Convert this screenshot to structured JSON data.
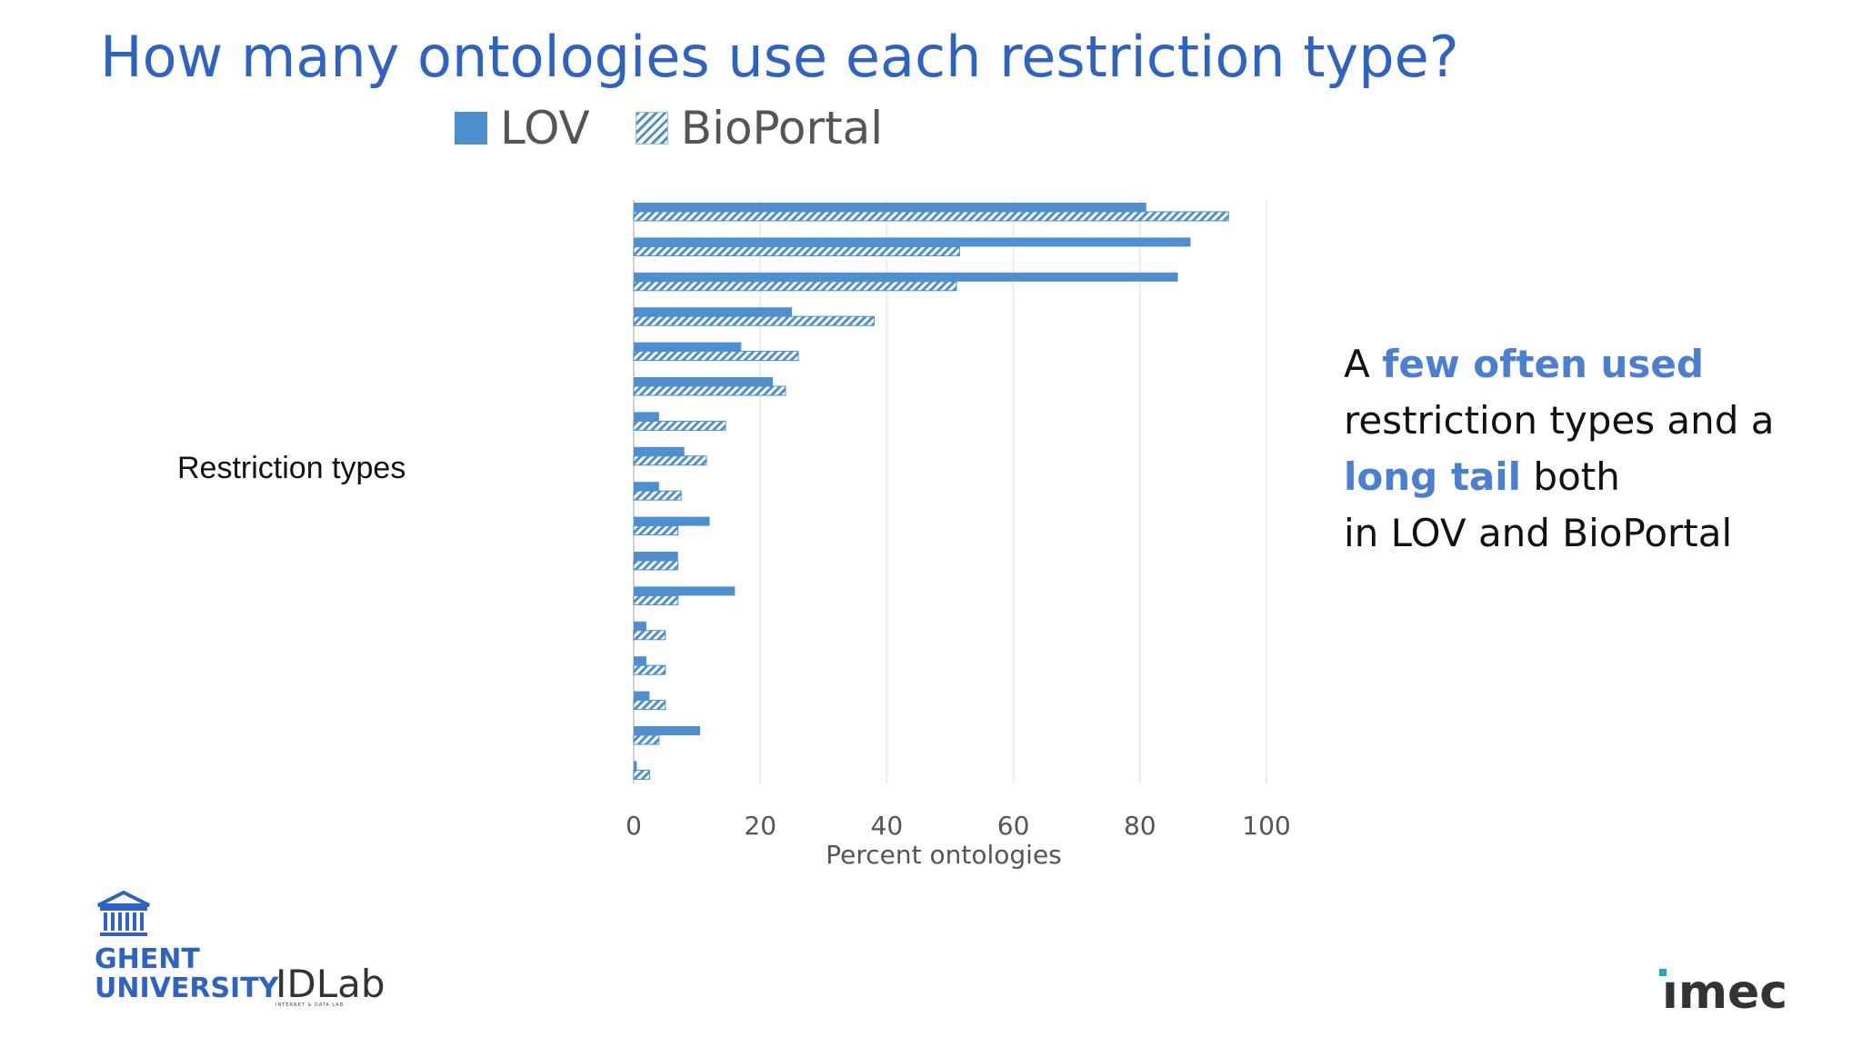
{
  "slide": {
    "title": "How many ontologies use each restriction type?",
    "side_label": "Restriction types",
    "annotation": {
      "part1": "A ",
      "highlight1": "few often used",
      "part2": "restriction types and a",
      "highlight2": "long tail",
      "part3": " both",
      "part4": "in LOV and BioPortal"
    },
    "logos": {
      "ghent_line1": "GHENT",
      "ghent_line2": "UNIVERSITY",
      "idlab": "IDLab",
      "idlab_sub": "INTERNET & DATA LAB",
      "imec": "ımec"
    }
  },
  "colors": {
    "title": "#2f63c3",
    "bar": "#4e8fd0",
    "highlight": "#4a7fd2"
  },
  "chart_data": {
    "type": "bar",
    "orientation": "horizontal",
    "xlabel": "Percent ontologies",
    "xlim": [
      0,
      100
    ],
    "xticks": [
      0,
      20,
      40,
      60,
      80,
      100
    ],
    "grid": true,
    "legend_position": "top",
    "series": [
      {
        "name": "LOV",
        "style": "solid",
        "values": [
          81,
          88,
          86,
          25,
          17,
          22,
          4,
          8,
          4,
          12,
          7,
          16,
          2,
          2,
          2.5,
          10.5,
          0.5
        ]
      },
      {
        "name": "BioPortal",
        "style": "hatched",
        "values": [
          94,
          51.5,
          51,
          38,
          26,
          24,
          14.5,
          11.5,
          7.5,
          7,
          7,
          7,
          5,
          5,
          5,
          4,
          2.5
        ]
      }
    ]
  }
}
